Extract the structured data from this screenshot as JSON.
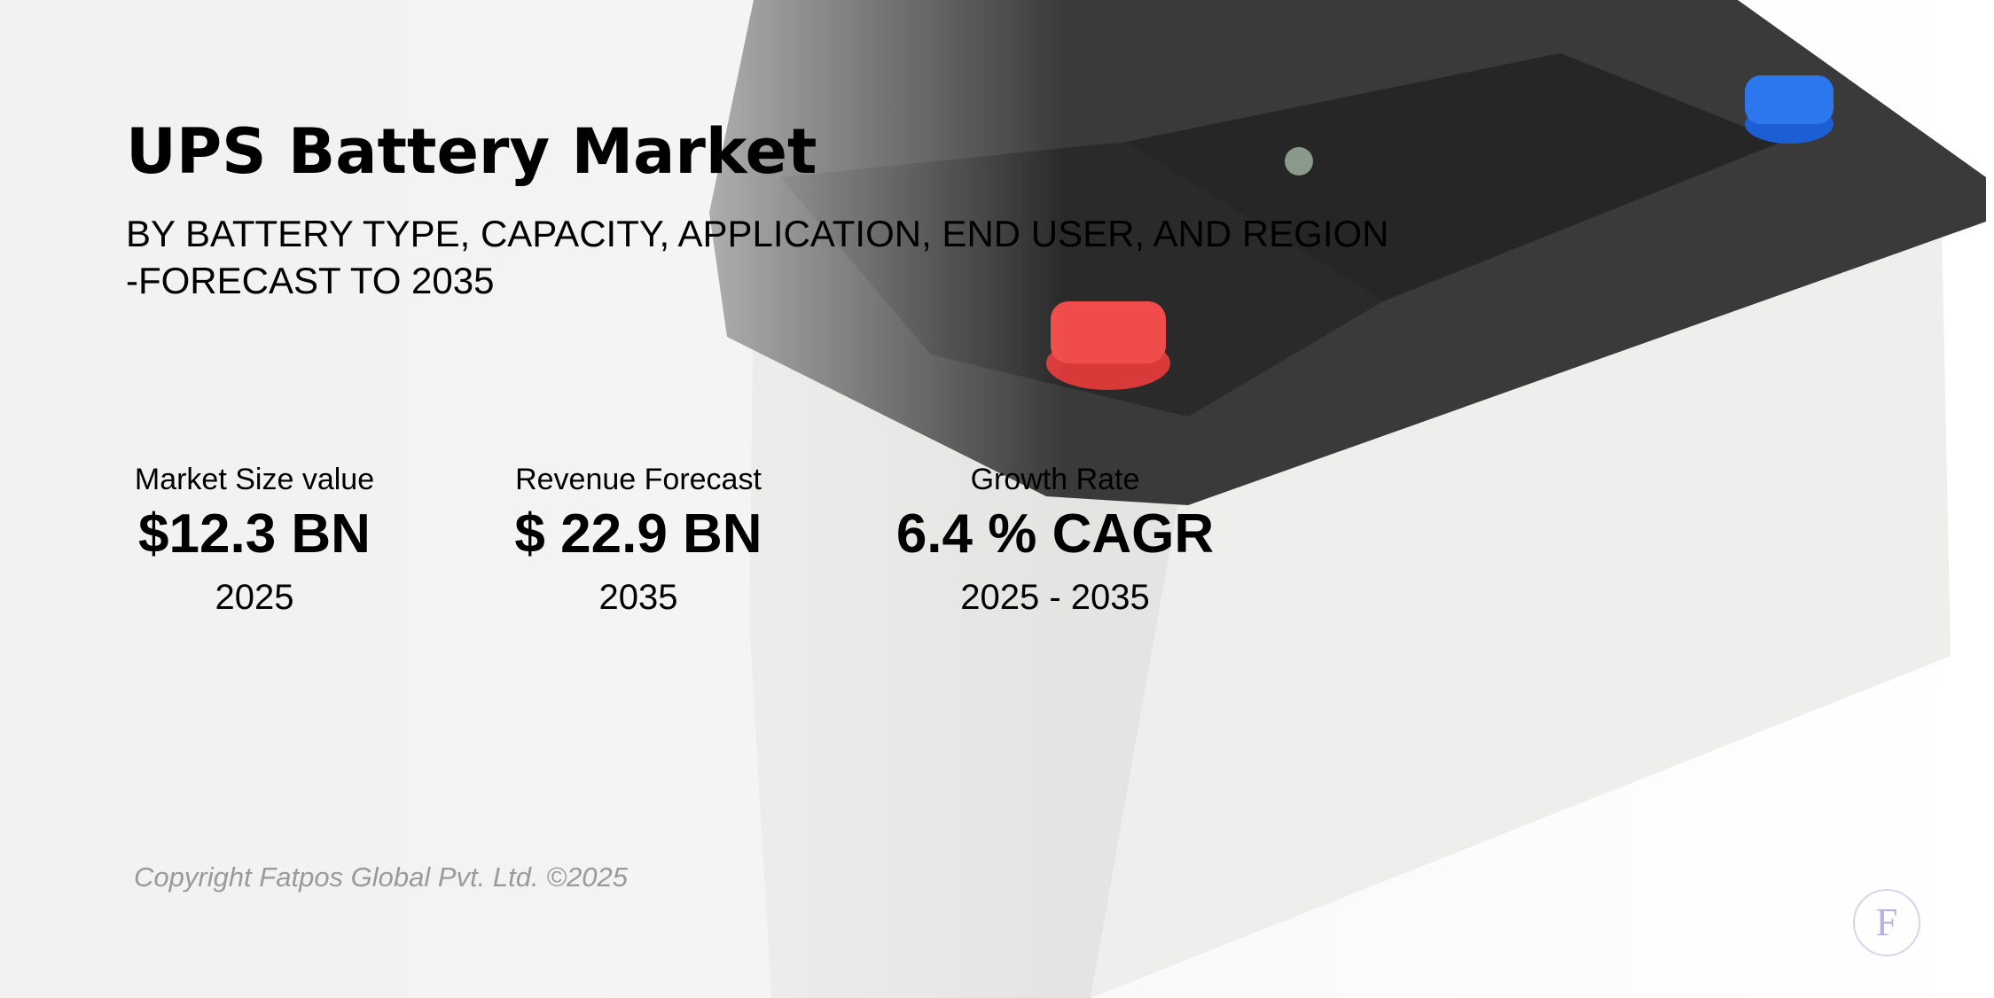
{
  "header": {
    "title": "UPS Battery Market",
    "subtitle": [
      "BY BATTERY TYPE, CAPACITY, APPLICATION, END USER, AND REGION",
      "-FORECAST TO 2035"
    ]
  },
  "metrics": [
    {
      "label": "Market Size value",
      "value": "$12.3 BN",
      "period": "2025"
    },
    {
      "label": "Revenue Forecast",
      "value": "$ 22.9 BN",
      "period": "2035"
    },
    {
      "label": "Growth Rate",
      "value": "6.4 % CAGR",
      "period": "2025 - 2035"
    }
  ],
  "footer": {
    "copyright": "Copyright Fatpos Global Pvt. Ltd. ©2025",
    "logo": "F"
  }
}
